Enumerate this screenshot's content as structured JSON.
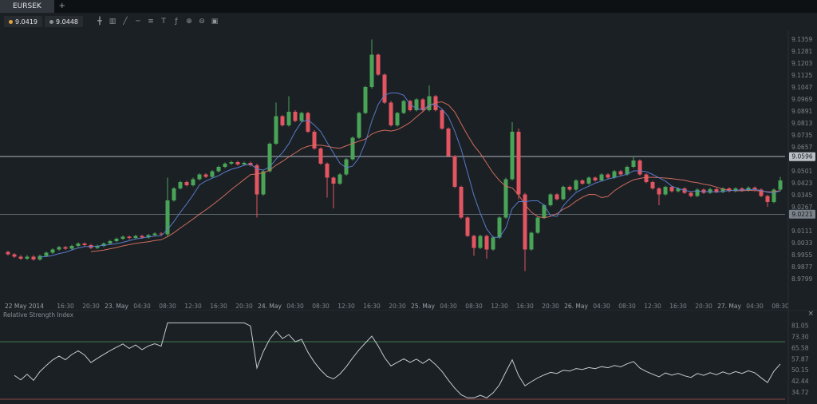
{
  "window": {
    "tabs": [
      {
        "label": "EURSEK",
        "active": true
      }
    ],
    "new_tab_label": "+"
  },
  "toolbar": {
    "bid": "9.0419",
    "ask": "9.0448",
    "icons": [
      {
        "name": "crosshair-icon",
        "glyph": "╋"
      },
      {
        "name": "chart-type-icon",
        "glyph": "▥"
      },
      {
        "name": "trend-line-icon",
        "glyph": "╱"
      },
      {
        "name": "horizontal-line-icon",
        "glyph": "─"
      },
      {
        "name": "fibonacci-icon",
        "glyph": "≡"
      },
      {
        "name": "text-tool-icon",
        "glyph": "T"
      },
      {
        "name": "indicators-icon",
        "glyph": "ƒ"
      },
      {
        "name": "zoom-in-icon",
        "glyph": "⊕"
      },
      {
        "name": "zoom-out-icon",
        "glyph": "⊖"
      },
      {
        "name": "snapshot-icon",
        "glyph": "▣"
      }
    ]
  },
  "chart_data": {
    "type": "candlestick",
    "symbol": "EURSEK",
    "ylim": [
      8.966,
      9.142
    ],
    "candles": [
      [
        8.9975,
        8.9983,
        8.9952,
        8.996
      ],
      [
        8.996,
        8.9968,
        8.9937,
        8.9945
      ],
      [
        8.9945,
        8.9953,
        8.9922,
        8.993
      ],
      [
        8.993,
        8.9953,
        8.9922,
        8.9945
      ],
      [
        8.9945,
        8.9953,
        8.9917,
        8.9925
      ],
      [
        8.9925,
        8.9958,
        8.9917,
        8.995
      ],
      [
        8.995,
        8.9978,
        8.9942,
        8.997
      ],
      [
        8.997,
        8.9998,
        8.9962,
        8.999
      ],
      [
        8.999,
        9.0013,
        8.9982,
        9.0005
      ],
      [
        9.0005,
        9.0013,
        8.9987,
        8.9995
      ],
      [
        8.9995,
        9.0023,
        8.9987,
        9.0015
      ],
      [
        9.0015,
        9.0038,
        9.0007,
        9.003
      ],
      [
        9.003,
        9.0038,
        9.0012,
        9.002
      ],
      [
        9.002,
        9.0028,
        8.9992,
        9.0
      ],
      [
        9.0,
        9.0023,
        8.9992,
        9.0015
      ],
      [
        9.0015,
        9.0038,
        9.0007,
        9.003
      ],
      [
        9.003,
        9.0053,
        9.0022,
        9.0045
      ],
      [
        9.0045,
        9.0068,
        9.0037,
        9.006
      ],
      [
        9.006,
        9.0083,
        9.0052,
        9.0075
      ],
      [
        9.0075,
        9.0083,
        9.0057,
        9.0065
      ],
      [
        9.0065,
        9.0088,
        9.0057,
        9.008
      ],
      [
        9.008,
        9.0088,
        9.0062,
        9.007
      ],
      [
        9.007,
        9.0093,
        9.0062,
        9.0085
      ],
      [
        9.0085,
        9.0103,
        9.0077,
        9.0095
      ],
      [
        9.0095,
        9.0103,
        9.0082,
        9.009
      ],
      [
        9.009,
        9.046,
        9.0075,
        9.031
      ],
      [
        9.031,
        9.0398,
        9.0302,
        9.039
      ],
      [
        9.039,
        9.0438,
        9.0382,
        9.043
      ],
      [
        9.043,
        9.0438,
        9.0402,
        9.041
      ],
      [
        9.041,
        9.0458,
        9.0402,
        9.045
      ],
      [
        9.045,
        9.0488,
        9.0442,
        9.048
      ],
      [
        9.048,
        9.0488,
        9.0457,
        9.0465
      ],
      [
        9.0465,
        9.0508,
        9.0457,
        9.05
      ],
      [
        9.05,
        9.0538,
        9.0492,
        9.053
      ],
      [
        9.053,
        9.0558,
        9.0522,
        9.055
      ],
      [
        9.055,
        9.0568,
        9.0542,
        9.056
      ],
      [
        9.056,
        9.0568,
        9.0537,
        9.0545
      ],
      [
        9.0545,
        9.0563,
        9.0537,
        9.0555
      ],
      [
        9.0555,
        9.0563,
        9.0532,
        9.054
      ],
      [
        9.054,
        9.055,
        9.02,
        9.035
      ],
      [
        9.035,
        9.0508,
        9.0342,
        9.05
      ],
      [
        9.05,
        9.0688,
        9.0492,
        9.068
      ],
      [
        9.068,
        9.095,
        9.0672,
        9.086
      ],
      [
        9.086,
        9.0868,
        9.0792,
        9.08
      ],
      [
        9.08,
        9.099,
        9.0792,
        9.089
      ],
      [
        9.089,
        9.0898,
        9.0822,
        9.083
      ],
      [
        9.083,
        9.0888,
        9.0822,
        9.088
      ],
      [
        9.088,
        9.0888,
        9.0752,
        9.076
      ],
      [
        9.076,
        9.0768,
        9.0642,
        9.065
      ],
      [
        9.065,
        9.0658,
        9.0542,
        9.055
      ],
      [
        9.055,
        9.0558,
        9.033,
        9.046
      ],
      [
        9.046,
        9.0468,
        9.026,
        9.042
      ],
      [
        9.042,
        9.0488,
        9.0412,
        9.048
      ],
      [
        9.048,
        9.0588,
        9.0472,
        9.058
      ],
      [
        9.058,
        9.0728,
        9.0572,
        9.072
      ],
      [
        9.072,
        9.0888,
        9.0712,
        9.088
      ],
      [
        9.088,
        9.1058,
        9.0872,
        9.105
      ],
      [
        9.105,
        9.1359,
        9.104,
        9.126
      ],
      [
        9.126,
        9.1268,
        9.1122,
        9.113
      ],
      [
        9.113,
        9.1138,
        9.0942,
        9.095
      ],
      [
        9.095,
        9.0958,
        9.0792,
        9.08
      ],
      [
        9.08,
        9.0888,
        9.0792,
        9.088
      ],
      [
        9.088,
        9.0968,
        9.0872,
        9.096
      ],
      [
        9.096,
        9.0968,
        9.0892,
        9.09
      ],
      [
        9.09,
        9.0978,
        9.0892,
        9.097
      ],
      [
        9.097,
        9.0978,
        9.0892,
        9.09
      ],
      [
        9.09,
        9.106,
        9.0892,
        9.099
      ],
      [
        9.099,
        9.0998,
        9.0892,
        9.09
      ],
      [
        9.09,
        9.0908,
        9.0772,
        9.078
      ],
      [
        9.078,
        9.0788,
        9.0592,
        9.06
      ],
      [
        9.06,
        9.0608,
        9.0392,
        9.04
      ],
      [
        9.04,
        9.0408,
        9.0192,
        9.02
      ],
      [
        9.02,
        9.0208,
        9.0072,
        9.008
      ],
      [
        9.008,
        9.0088,
        8.995,
        9.0
      ],
      [
        9.0,
        9.0088,
        8.9992,
        9.008
      ],
      [
        9.008,
        9.0088,
        8.993,
        8.999
      ],
      [
        8.999,
        9.0078,
        8.9982,
        9.007
      ],
      [
        9.007,
        9.0208,
        9.0062,
        9.02
      ],
      [
        9.02,
        9.0458,
        9.0192,
        9.045
      ],
      [
        9.045,
        9.082,
        9.044,
        9.076
      ],
      [
        9.076,
        9.078,
        9.032,
        9.035
      ],
      [
        9.035,
        9.036,
        8.985,
        8.999
      ],
      [
        8.999,
        9.0108,
        8.9982,
        9.01
      ],
      [
        9.01,
        9.0208,
        9.0092,
        9.02
      ],
      [
        9.02,
        9.0288,
        9.0192,
        9.028
      ],
      [
        9.028,
        9.0358,
        9.0272,
        9.035
      ],
      [
        9.035,
        9.0358,
        9.0312,
        9.032
      ],
      [
        9.032,
        9.0408,
        9.0312,
        9.04
      ],
      [
        9.04,
        9.0408,
        9.0372,
        9.038
      ],
      [
        9.038,
        9.0448,
        9.0372,
        9.044
      ],
      [
        9.044,
        9.0448,
        9.0412,
        9.042
      ],
      [
        9.042,
        9.0468,
        9.0412,
        9.046
      ],
      [
        9.046,
        9.0468,
        9.0432,
        9.044
      ],
      [
        9.044,
        9.0488,
        9.0432,
        9.048
      ],
      [
        9.048,
        9.0488,
        9.0452,
        9.046
      ],
      [
        9.046,
        9.0508,
        9.0452,
        9.05
      ],
      [
        9.05,
        9.0508,
        9.0472,
        9.048
      ],
      [
        9.048,
        9.0538,
        9.0472,
        9.053
      ],
      [
        9.053,
        9.06,
        9.0522,
        9.057
      ],
      [
        9.057,
        9.0578,
        9.0472,
        9.048
      ],
      [
        9.048,
        9.0488,
        9.0422,
        9.043
      ],
      [
        9.043,
        9.0438,
        9.0382,
        9.039
      ],
      [
        9.039,
        9.0398,
        9.028,
        9.035
      ],
      [
        9.035,
        9.0408,
        9.0342,
        9.04
      ],
      [
        9.04,
        9.0408,
        9.0362,
        9.037
      ],
      [
        9.037,
        9.0398,
        9.0362,
        9.039
      ],
      [
        9.039,
        9.0398,
        9.0352,
        9.036
      ],
      [
        9.036,
        9.0368,
        9.0332,
        9.034
      ],
      [
        9.034,
        9.0388,
        9.0332,
        9.038
      ],
      [
        9.038,
        9.0388,
        9.0352,
        9.036
      ],
      [
        9.036,
        9.0393,
        9.0352,
        9.0385
      ],
      [
        9.0385,
        9.0393,
        9.0357,
        9.0365
      ],
      [
        9.0365,
        9.0398,
        9.0357,
        9.039
      ],
      [
        9.039,
        9.0398,
        9.0362,
        9.037
      ],
      [
        9.037,
        9.0398,
        9.0362,
        9.039
      ],
      [
        9.039,
        9.0398,
        9.0367,
        9.0375
      ],
      [
        9.0375,
        9.0403,
        9.0367,
        9.0395
      ],
      [
        9.0395,
        9.0403,
        9.0372,
        9.038
      ],
      [
        9.038,
        9.0388,
        9.0332,
        9.034
      ],
      [
        9.034,
        9.0348,
        9.027,
        9.03
      ],
      [
        9.03,
        9.0388,
        9.0292,
        9.038
      ],
      [
        9.038,
        9.0465,
        9.0372,
        9.044
      ]
    ],
    "overlays": [
      {
        "name": "moving-average-fast",
        "type": "sma",
        "period": 6,
        "color_key": "ma_fast"
      },
      {
        "name": "moving-average-slow",
        "type": "sma",
        "period": 14,
        "color_key": "ma_slow"
      }
    ],
    "price_lines": [
      {
        "value": 9.0596,
        "label": "9.0596",
        "style": "light"
      },
      {
        "value": 9.0221,
        "label": "9.0221",
        "style": "dark"
      }
    ],
    "price_ticks": [
      "9.1359",
      "9.1281",
      "9.1203",
      "9.1125",
      "9.1047",
      "9.0969",
      "9.0891",
      "9.0813",
      "9.0735",
      "9.0657",
      "9.0579",
      "9.0501",
      "9.0423",
      "9.0345",
      "9.0267",
      "9.0189",
      "9.0111",
      "9.0033",
      "8.9955",
      "8.9877",
      "8.9799"
    ],
    "time_labels": [
      {
        "i": 2,
        "text": "22 May 2014",
        "anchor": "start",
        "day": true
      },
      {
        "i": 9,
        "text": "16:30"
      },
      {
        "i": 13,
        "text": "20:30"
      },
      {
        "i": 17,
        "text": "23. May",
        "day": true
      },
      {
        "i": 21,
        "text": "04:30"
      },
      {
        "i": 25,
        "text": "08:30"
      },
      {
        "i": 29,
        "text": "12:30"
      },
      {
        "i": 33,
        "text": "16:30"
      },
      {
        "i": 37,
        "text": "20:30"
      },
      {
        "i": 41,
        "text": "24. May",
        "day": true
      },
      {
        "i": 45,
        "text": "04:30"
      },
      {
        "i": 49,
        "text": "08:30"
      },
      {
        "i": 53,
        "text": "12:30"
      },
      {
        "i": 57,
        "text": "16:30"
      },
      {
        "i": 61,
        "text": "20:30"
      },
      {
        "i": 65,
        "text": "25. May",
        "day": true
      },
      {
        "i": 69,
        "text": "04:30"
      },
      {
        "i": 73,
        "text": "08:30"
      },
      {
        "i": 77,
        "text": "12:30"
      },
      {
        "i": 81,
        "text": "16:30"
      },
      {
        "i": 85,
        "text": "20:30"
      },
      {
        "i": 89,
        "text": "26. May",
        "day": true
      },
      {
        "i": 93,
        "text": "04:30"
      },
      {
        "i": 97,
        "text": "08:30"
      },
      {
        "i": 101,
        "text": "12:30"
      },
      {
        "i": 105,
        "text": "16:30"
      },
      {
        "i": 109,
        "text": "20:30"
      },
      {
        "i": 113,
        "text": "27. May",
        "day": true
      },
      {
        "i": 117,
        "text": "04:30"
      },
      {
        "i": 121,
        "text": "08:30"
      }
    ]
  },
  "rsi_panel": {
    "title": "Relative Strength Index",
    "close_label": "×",
    "axis_labels": [
      "81.05",
      "73.30",
      "65.58",
      "57.87",
      "50.15",
      "42.44",
      "34.72"
    ],
    "levels": {
      "overbought": 70,
      "oversold": 30
    },
    "range": [
      29.5,
      84.9
    ],
    "period": 14
  },
  "colors": {
    "background": "#15181c",
    "chart_bg": "#1b2025",
    "up": "#4aa457",
    "down": "#e25561",
    "ma_fast": "#5b7fd0",
    "ma_slow": "#d8705f",
    "axis_text": "#7e848b",
    "day_text": "#9aa0a6",
    "grid_line": "#2a2f35",
    "price_line_light": "#aeb4ba",
    "price_line_dark": "#5c636a",
    "badge_light": "#b9bfc5",
    "badge_dark": "#7b828a",
    "badge_text": "#15181c",
    "rsi_line": "#c6cacf",
    "overbought": "#3f7a4c",
    "oversold": "#8a4747",
    "bid_dot": "#e0a43c",
    "ask_dot": "#8a9097"
  }
}
